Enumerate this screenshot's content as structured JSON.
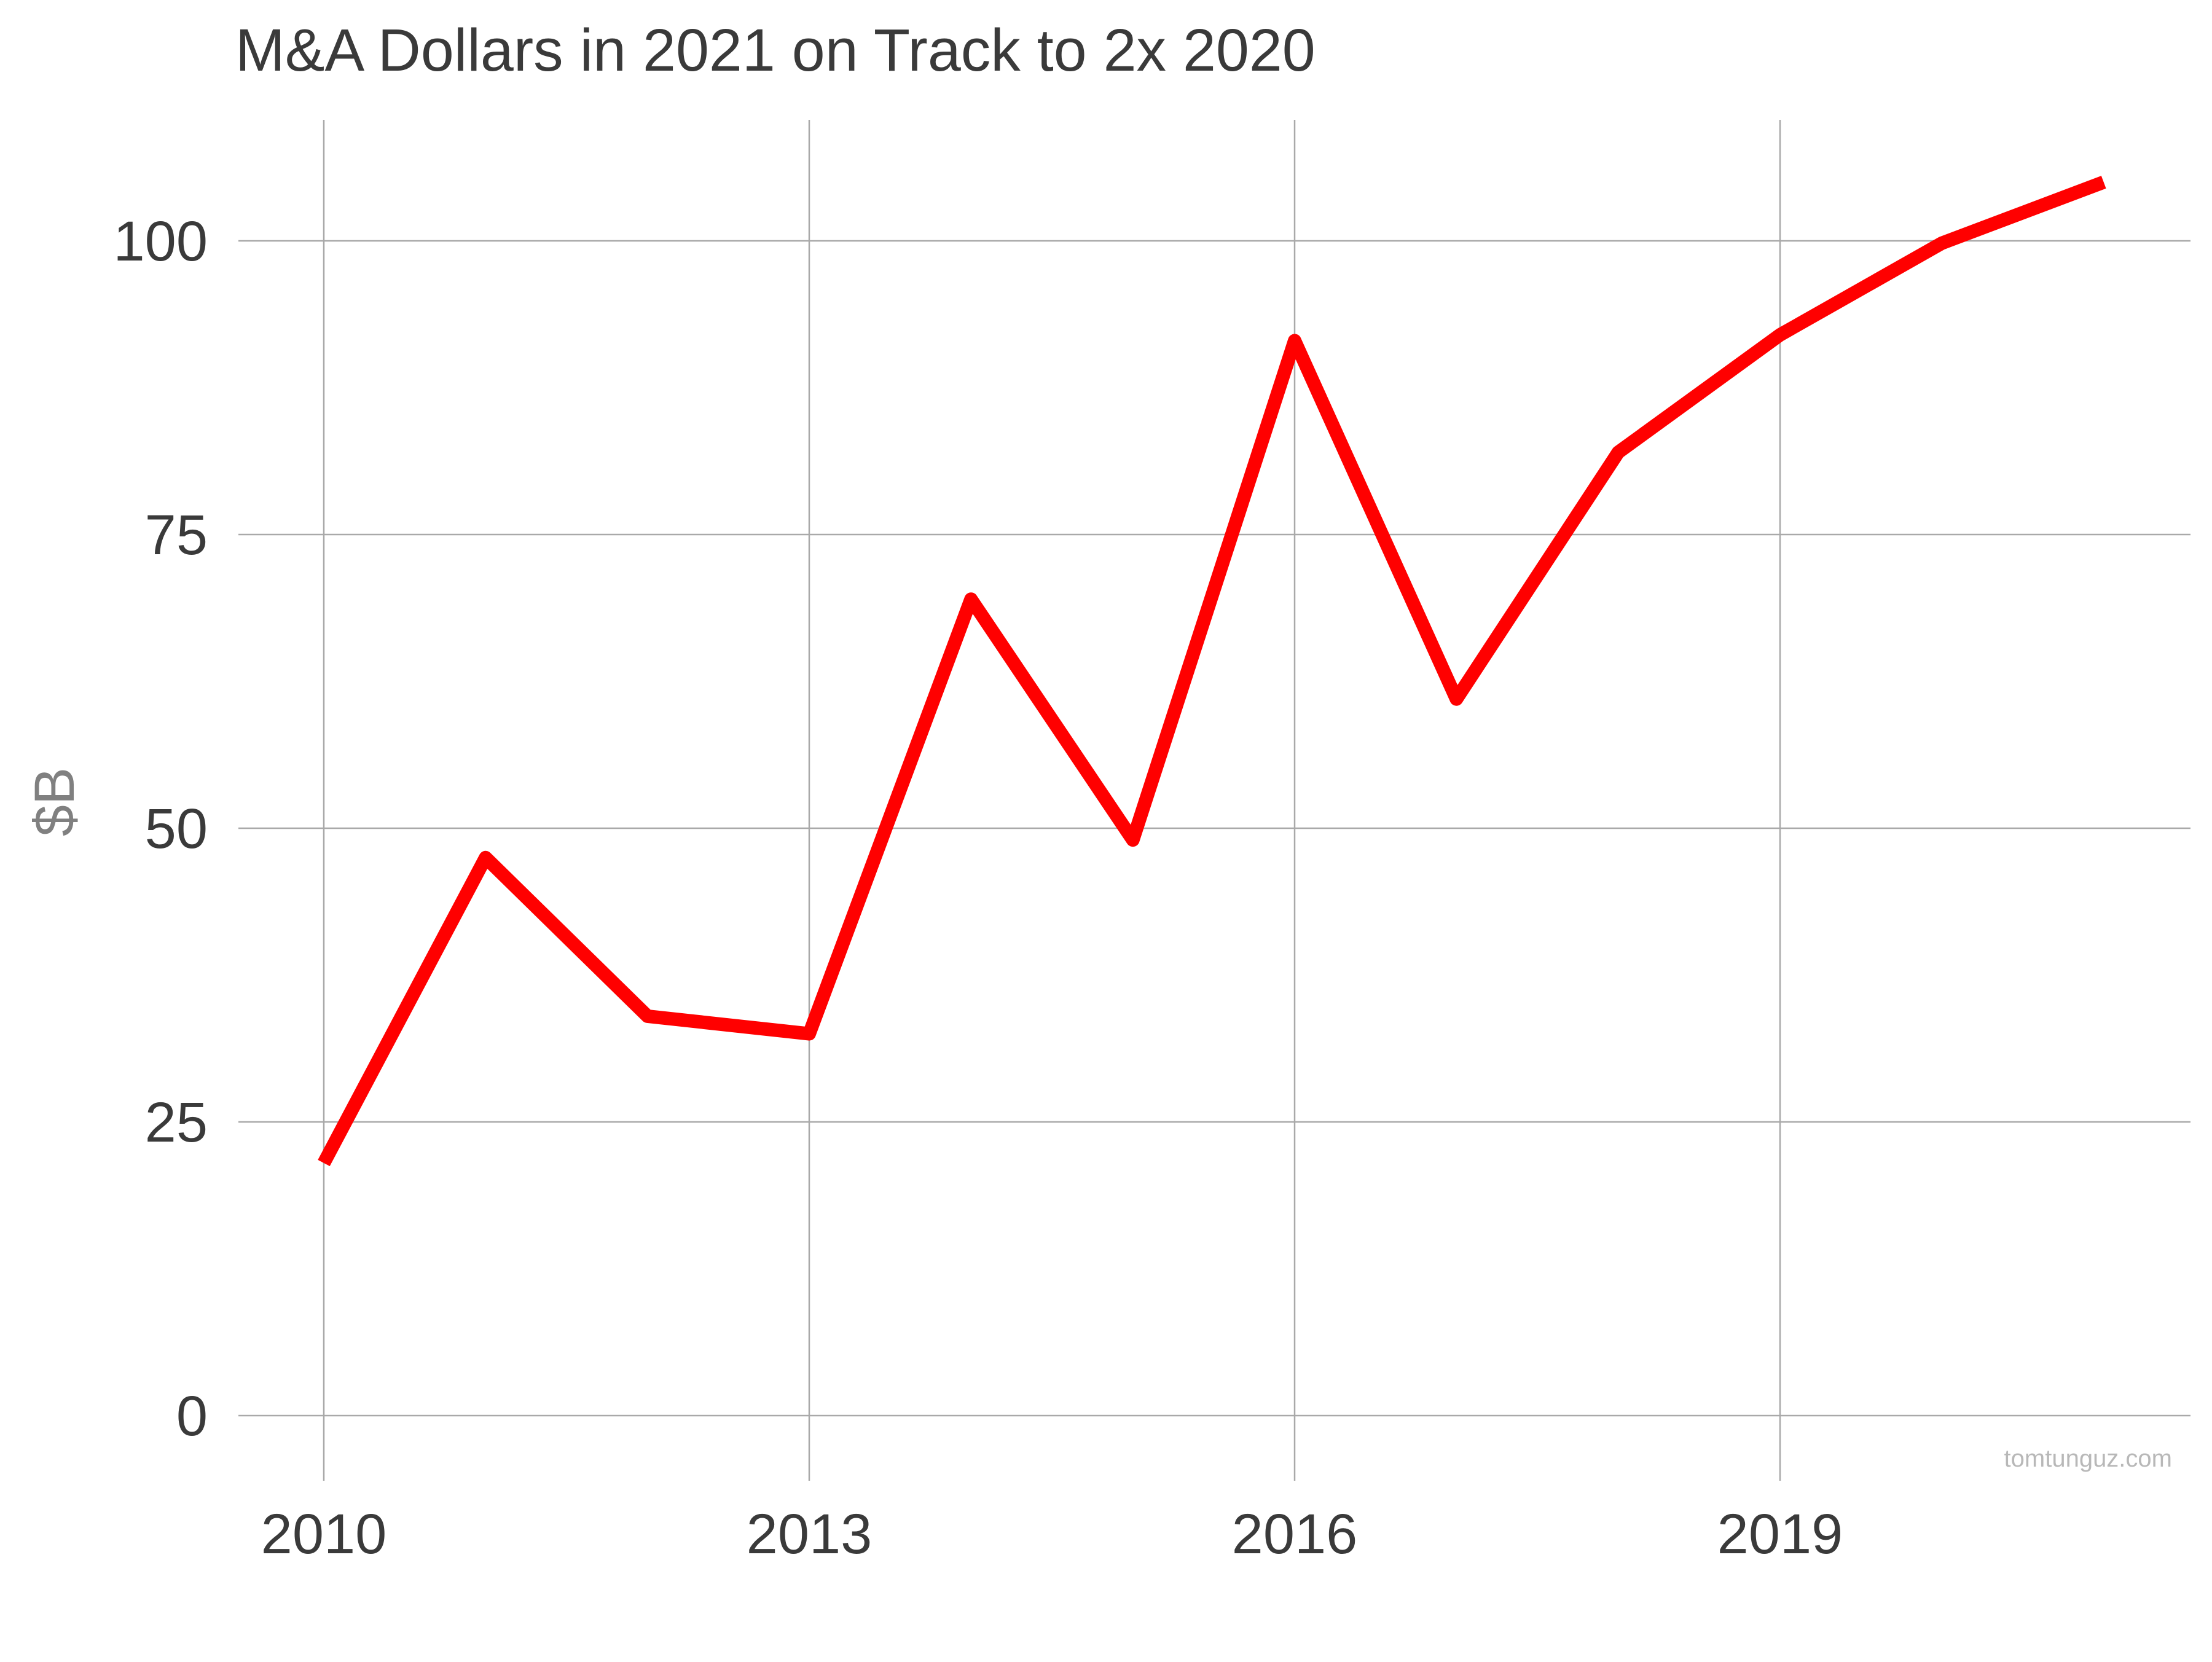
{
  "chart_data": {
    "type": "line",
    "title": "M&A Dollars in 2021 on Track to 2x 2020",
    "xlabel": "",
    "ylabel": "$B",
    "x": [
      2010,
      2011,
      2012,
      2013,
      2014,
      2015,
      2016,
      2017,
      2018,
      2019,
      2020,
      2021
    ],
    "series": [
      {
        "values": [
          21.5,
          47.5,
          34,
          32.5,
          69.5,
          49,
          91.5,
          61,
          82,
          92,
          99.8,
          105
        ]
      }
    ],
    "xlim": [
      2009.5,
      2021.6
    ],
    "ylim": [
      -5,
      110
    ],
    "x_ticks": [
      2010,
      2013,
      2016,
      2019
    ],
    "y_ticks": [
      0,
      25,
      50,
      75,
      100
    ],
    "x_tick_labels": [
      "2010",
      "2013",
      "2016",
      "2019"
    ],
    "y_tick_labels": [
      "0",
      "25",
      "50",
      "75",
      "100"
    ],
    "grid": true,
    "legend": "none",
    "line_color": "#ff0000",
    "grid_color": "#a9a9a9",
    "watermark": "tomtunguz.com"
  }
}
